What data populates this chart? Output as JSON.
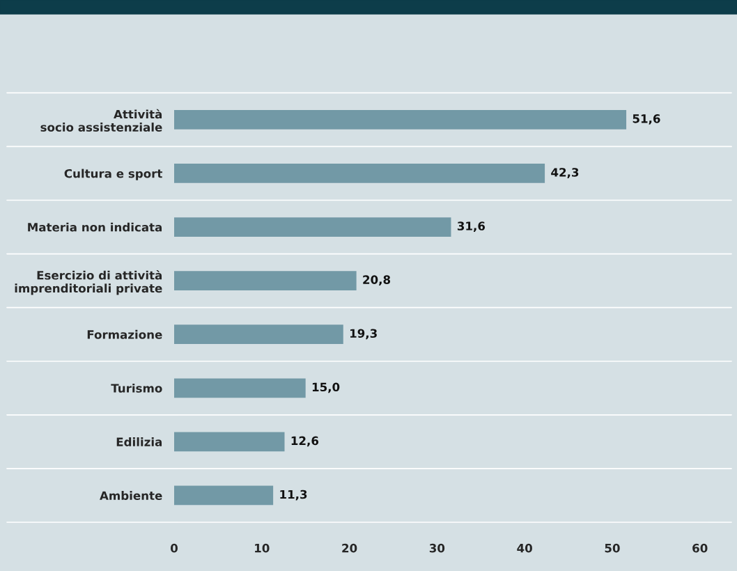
{
  "chart_data": {
    "type": "bar",
    "orientation": "horizontal",
    "categories": [
      "Attività\nsocio assistenziale",
      "Cultura e sport",
      "Materia non indicata",
      "Esercizio di attività\nimprenditoriali private",
      "Formazione",
      "Turismo",
      "Edilizia",
      "Ambiente"
    ],
    "values": [
      51.6,
      42.3,
      31.6,
      20.8,
      19.3,
      15.0,
      12.6,
      11.3
    ],
    "value_labels": [
      "51,6",
      "42,3",
      "31,6",
      "20,8",
      "19,3",
      "15,0",
      "12,6",
      "11,3"
    ],
    "color": "#7299a6",
    "xlim": [
      0,
      63.6
    ],
    "xticks": [
      0,
      10,
      20,
      30,
      40,
      50,
      60
    ],
    "grid": "y"
  }
}
